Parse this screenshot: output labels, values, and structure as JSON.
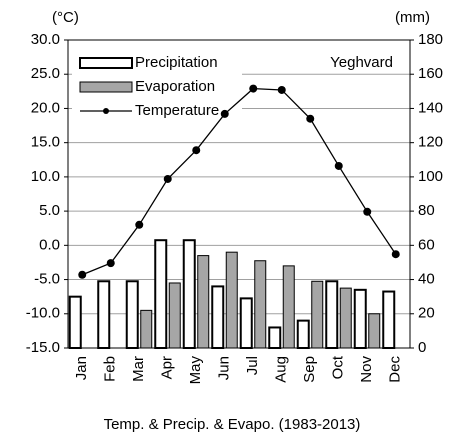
{
  "chart_data": {
    "type": "bar",
    "location": "Yeghvard",
    "xlabel": "Temp. & Precip. & Evapo. (1983-2013)",
    "y_unit": "(°C)",
    "y2_unit": "(mm)",
    "categories": [
      "Jan",
      "Feb",
      "Mar",
      "Apr",
      "May",
      "Jun",
      "Jul",
      "Aug",
      "Sep",
      "Oct",
      "Nov",
      "Dec"
    ],
    "series": [
      {
        "name": "Precipitation",
        "type": "bar",
        "axis": "y2",
        "color": "#ffffff",
        "values": [
          30,
          39,
          39,
          63,
          63,
          36,
          29,
          12,
          16,
          39,
          34,
          33
        ]
      },
      {
        "name": "Evaporation",
        "type": "bar",
        "axis": "y2",
        "color": "#a6a6a6",
        "values": [
          0,
          0,
          22,
          38,
          54,
          56,
          51,
          48,
          39,
          35,
          20,
          0
        ]
      },
      {
        "name": "Temperature",
        "type": "line",
        "axis": "y",
        "color": "#000000",
        "values": [
          -4.3,
          -2.6,
          3.0,
          9.7,
          13.9,
          19.2,
          22.9,
          22.7,
          18.5,
          11.6,
          4.9,
          -1.3
        ]
      }
    ],
    "ylim": [
      -15,
      30
    ],
    "yticks": [
      {
        "value": -15,
        "label": "-15.0"
      },
      {
        "value": -10,
        "label": "-10.0"
      },
      {
        "value": -5,
        "label": "-5.0"
      },
      {
        "value": 0,
        "label": "0.0"
      },
      {
        "value": 5,
        "label": "5.0"
      },
      {
        "value": 10,
        "label": "10.0"
      },
      {
        "value": 15,
        "label": "15.0"
      },
      {
        "value": 20,
        "label": "20.0"
      },
      {
        "value": 25,
        "label": "25.0"
      },
      {
        "value": 30,
        "label": "30.0"
      }
    ],
    "y2lim": [
      0,
      180
    ],
    "y2ticks": [
      0,
      20,
      40,
      60,
      80,
      100,
      120,
      140,
      160,
      180
    ],
    "grid": true
  }
}
